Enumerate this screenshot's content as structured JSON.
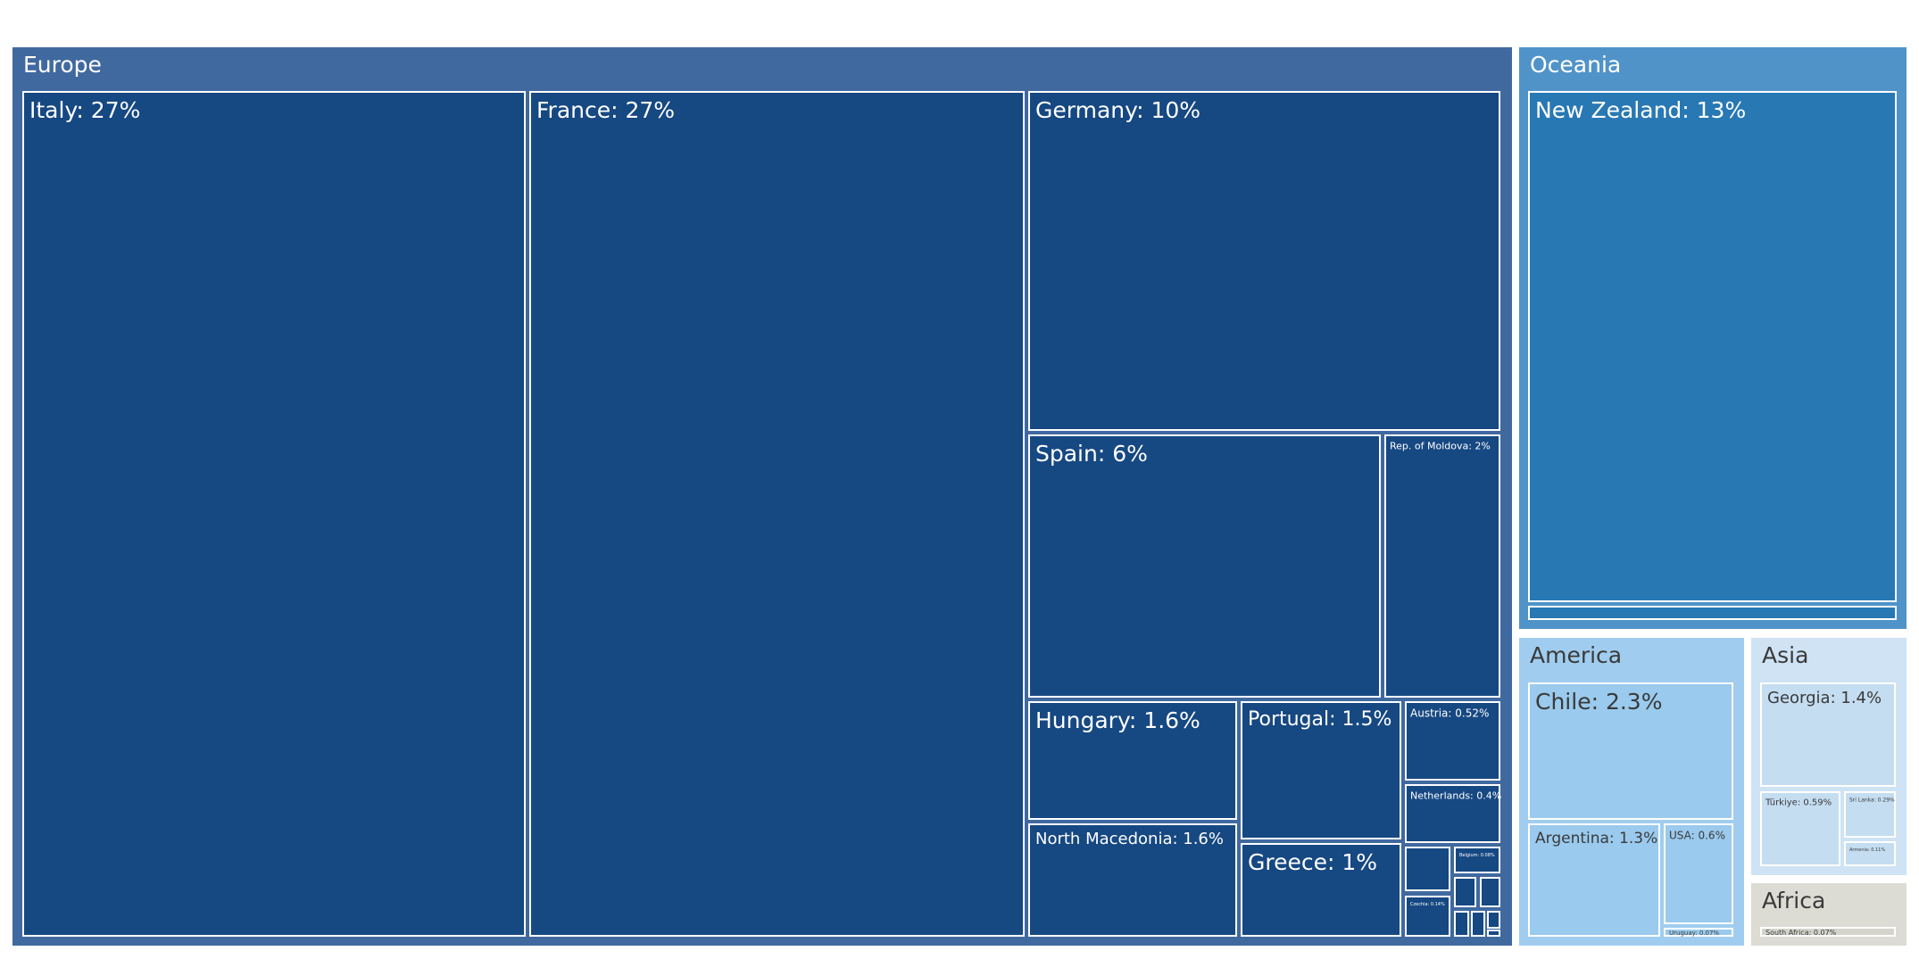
{
  "chart_data": {
    "type": "treemap",
    "unit": "percent",
    "colors": {
      "Europe": "#4069a0",
      "Europe_leaf": "#164882",
      "Oceania": "#5093c9",
      "Oceania_leaf": "#2878b4",
      "America": "#a0cdef",
      "America_leaf": "#9acaed",
      "Asia": "#cfe3f4",
      "Asia_leaf": "#c4ddf1",
      "Africa": "#dcdcd4",
      "Africa_leaf": "#d4d4cc",
      "border": "#ffffff",
      "text_dark": "#3a3a3a",
      "text_light": "#ffffff"
    },
    "groups": [
      {
        "name": "Europe",
        "items": [
          {
            "label": "Italy: 27%",
            "value": 27
          },
          {
            "label": "France: 27%",
            "value": 27
          },
          {
            "label": "Germany: 10%",
            "value": 10
          },
          {
            "label": "Spain: 6%",
            "value": 6
          },
          {
            "label": "Rep. of Moldova: 2%",
            "value": 2
          },
          {
            "label": "Hungary: 1.6%",
            "value": 1.6
          },
          {
            "label": "North Macedonia: 1.6%",
            "value": 1.6
          },
          {
            "label": "Portugal: 1.5%",
            "value": 1.5
          },
          {
            "label": "Greece: 1%",
            "value": 1
          },
          {
            "label": "Austria: 0.52%",
            "value": 0.52
          },
          {
            "label": "Netherlands: 0.4%",
            "value": 0.4
          },
          {
            "label": "",
            "value": 0.2
          },
          {
            "label": "Belgium: 0.08%",
            "value": 0.08
          },
          {
            "label": "Czechia: 0.14%",
            "value": 0.14
          },
          {
            "label": "",
            "value": 0.05
          },
          {
            "label": "",
            "value": 0.05
          },
          {
            "label": "",
            "value": 0.04
          },
          {
            "label": "",
            "value": 0.04
          },
          {
            "label": "",
            "value": 0.03
          },
          {
            "label": "",
            "value": 0.02
          }
        ]
      },
      {
        "name": "Oceania",
        "items": [
          {
            "label": "New Zealand: 13%",
            "value": 13
          },
          {
            "label": "",
            "value": 0.2
          }
        ]
      },
      {
        "name": "America",
        "items": [
          {
            "label": "Chile: 2.3%",
            "value": 2.3
          },
          {
            "label": "Argentina: 1.3%",
            "value": 1.3
          },
          {
            "label": "USA: 0.6%",
            "value": 0.6
          },
          {
            "label": "Uruguay: 0.07%",
            "value": 0.07
          }
        ]
      },
      {
        "name": "Asia",
        "items": [
          {
            "label": "Georgia: 1.4%",
            "value": 1.4
          },
          {
            "label": "Türkiye: 0.59%",
            "value": 0.59
          },
          {
            "label": "Sri Lanka: 0.29%",
            "value": 0.29
          },
          {
            "label": "Armenia: 0.11%",
            "value": 0.11
          }
        ]
      },
      {
        "name": "Africa",
        "items": [
          {
            "label": "South Africa: 0.07%",
            "value": 0.07
          }
        ]
      }
    ]
  }
}
